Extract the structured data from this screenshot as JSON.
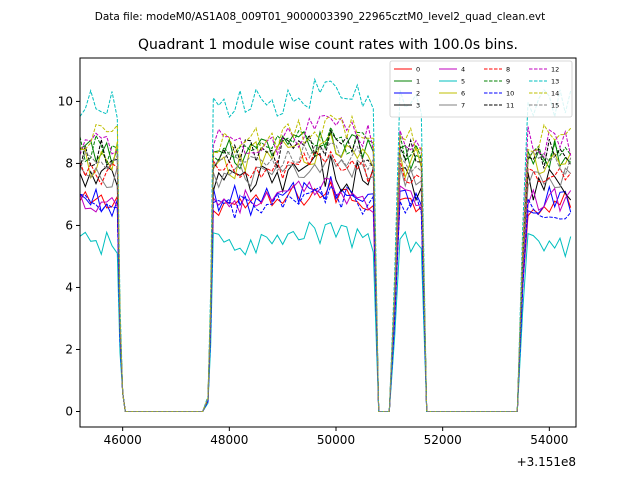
{
  "figure": {
    "suptitle": "Data file: modeM0/AS1A08_009T01_9000003390_22965cztM0_level2_quad_clean.evt"
  },
  "chart_data": {
    "type": "line",
    "title": "Quadrant 1 module wise count rates with 100.0s bins.",
    "xlabel": "",
    "ylabel": "",
    "x_offset_label": "+3.151e8",
    "xlim": [
      45200,
      54500
    ],
    "ylim": [
      -0.5,
      11.4
    ],
    "x_ticks": [
      46000,
      48000,
      50000,
      52000,
      54000
    ],
    "x_tick_labels": [
      "46000",
      "48000",
      "50000",
      "52000",
      "54000"
    ],
    "y_ticks": [
      0,
      2,
      4,
      6,
      8,
      10
    ],
    "y_tick_labels": [
      "0",
      "2",
      "4",
      "6",
      "8",
      "10"
    ],
    "grid": false,
    "legend_position": "top-right",
    "segments": [
      {
        "start": 45200,
        "end": 45900
      },
      {
        "start": 47700,
        "end": 50700
      },
      {
        "start": 51100,
        "end": 51600
      },
      {
        "start": 53500,
        "end": 54400
      }
    ],
    "gaps": [
      {
        "x": [
          45950,
          46050,
          46100,
          47500,
          47550,
          47650
        ]
      },
      {
        "x": [
          50750,
          50800,
          51100
        ]
      },
      {
        "x": [
          51650,
          51700,
          53400,
          53450
        ]
      }
    ],
    "series": [
      {
        "name": "0",
        "color": "#ff0000",
        "style": "solid",
        "mean": 6.7,
        "amp": 0.4
      },
      {
        "name": "1",
        "color": "#008000",
        "style": "solid",
        "mean": 8.3,
        "amp": 0.5
      },
      {
        "name": "2",
        "color": "#0000ff",
        "style": "solid",
        "mean": 6.8,
        "amp": 0.5
      },
      {
        "name": "3",
        "color": "#000000",
        "style": "solid",
        "mean": 7.4,
        "amp": 0.6
      },
      {
        "name": "4",
        "color": "#bf00bf",
        "style": "solid",
        "mean": 6.8,
        "amp": 0.4
      },
      {
        "name": "5",
        "color": "#00bfbf",
        "style": "solid",
        "mean": 5.4,
        "amp": 0.4
      },
      {
        "name": "6",
        "color": "#bfbf00",
        "style": "solid",
        "mean": 8.1,
        "amp": 0.6
      },
      {
        "name": "7",
        "color": "#808080",
        "style": "solid",
        "mean": 7.6,
        "amp": 0.4
      },
      {
        "name": "8",
        "color": "#ff0000",
        "style": "dashed",
        "mean": 7.7,
        "amp": 0.4
      },
      {
        "name": "9",
        "color": "#008000",
        "style": "dashed",
        "mean": 8.4,
        "amp": 0.5
      },
      {
        "name": "10",
        "color": "#0000ff",
        "style": "dashed",
        "mean": 6.6,
        "amp": 0.4
      },
      {
        "name": "11",
        "color": "#000000",
        "style": "dashed",
        "mean": 8.3,
        "amp": 0.5
      },
      {
        "name": "12",
        "color": "#bf00bf",
        "style": "dashed",
        "mean": 8.7,
        "amp": 0.5
      },
      {
        "name": "13",
        "color": "#00bfbf",
        "style": "dashed",
        "mean": 9.9,
        "amp": 0.5
      },
      {
        "name": "14",
        "color": "#bfbf00",
        "style": "dashed",
        "mean": 8.8,
        "amp": 0.5
      },
      {
        "name": "15",
        "color": "#808080",
        "style": "dashed",
        "mean": 8.0,
        "amp": 0.4
      }
    ]
  }
}
